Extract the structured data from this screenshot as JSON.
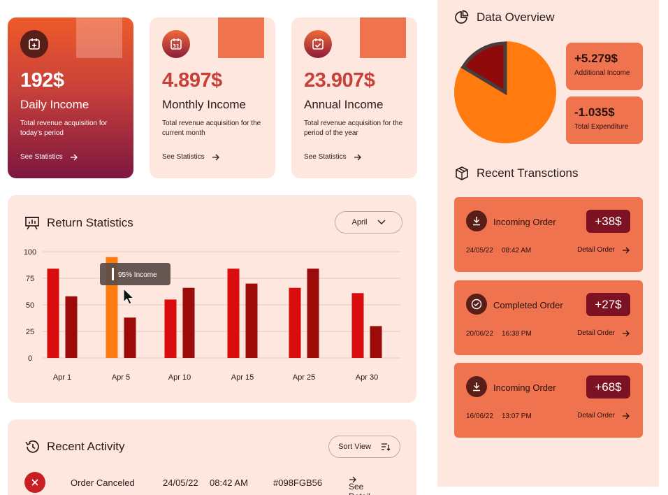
{
  "stats": [
    {
      "value": "192$",
      "label": "Daily Income",
      "desc": "Total revenue acquisition for today's period",
      "link": "See Statistics",
      "icon": "calendar-plus-icon"
    },
    {
      "value": "4.897$",
      "label": "Monthly Income",
      "desc": "Total revenue acquisition for the current month",
      "link": "See Statistics",
      "icon": "calendar-31-icon",
      "day": "31"
    },
    {
      "value": "23.907$",
      "label": "Annual Income",
      "desc": "Total revenue acquisition for the period of the year",
      "link": "See Statistics",
      "icon": "calendar-check-icon"
    }
  ],
  "return_stats": {
    "title": "Return Statistics",
    "month_select": "April",
    "tooltip": "95% Income"
  },
  "chart_data": {
    "type": "bar",
    "categories": [
      "Apr 1",
      "Apr 5",
      "Apr 10",
      "Apr 15",
      "Apr 25",
      "Apr 30"
    ],
    "series": [
      {
        "values": [
          84,
          95,
          55,
          84,
          66,
          61
        ]
      },
      {
        "values": [
          58,
          38,
          66,
          70,
          84,
          30
        ]
      }
    ],
    "highlight": {
      "category_index": 1,
      "series_index": 0
    },
    "y_ticks": [
      "0",
      "25",
      "50",
      "75",
      "100"
    ],
    "ylim": [
      0,
      100
    ],
    "colors": {
      "series1": "#d90d0d",
      "series2": "#9c0a0a",
      "highlight": "#ff7a0f"
    },
    "grid": true
  },
  "activity": {
    "title": "Recent Activity",
    "sort_label": "Sort View",
    "row": {
      "status": "Order Canceled",
      "date": "24/05/22",
      "time": "08:42 AM",
      "id": "#098FGB56",
      "link": "See Detail"
    }
  },
  "overview": {
    "title": "Data Overview",
    "pie": {
      "values": [
        {
          "label": "Additional Income",
          "value": 5.279,
          "color": "#ff7a0f"
        },
        {
          "label": "Total Expenditure",
          "value": 1.035,
          "color": "#8f0a0a"
        }
      ]
    },
    "cards": [
      {
        "value": "+5.279$",
        "label": "Additional Income"
      },
      {
        "value": "-1.035$",
        "label": "Total Expenditure"
      }
    ]
  },
  "transactions": {
    "title": "Recent Transctions",
    "items": [
      {
        "name": "Incoming Order",
        "amount": "+38$",
        "date": "24/05/22",
        "time": "08:42 AM",
        "link": "Detail Order",
        "icon": "download-icon"
      },
      {
        "name": "Completed Order",
        "amount": "+27$",
        "date": "20/06/22",
        "time": "16:38 PM",
        "link": "Detail Order",
        "icon": "check-circle-icon"
      },
      {
        "name": "Incoming Order",
        "amount": "+68$",
        "date": "16/06/22",
        "time": "13:07 PM",
        "link": "Detail Order",
        "icon": "download-icon"
      }
    ]
  }
}
